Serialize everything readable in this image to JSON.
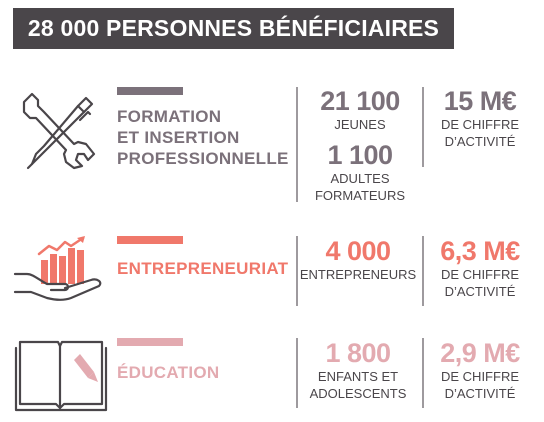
{
  "header": {
    "title": "28 000 PERSONNES BÉNÉFICIAIRES"
  },
  "colors": {
    "dark": "#4a464a",
    "gray": "#7b717a",
    "orange": "#f0786b",
    "pink": "#e3aab0",
    "line": "#9e9a9e"
  },
  "rows": [
    {
      "icon": "wrench-pen-icon",
      "title_lines": [
        "FORMATION",
        "ET INSERTION",
        "PROFESSIONNELLE"
      ],
      "stats": [
        {
          "number": "21 100",
          "label_lines": [
            "JEUNES"
          ]
        },
        {
          "number": "1 100",
          "label_lines": [
            "ADULTES",
            "FORMATEURS"
          ]
        }
      ],
      "revenue": {
        "number": "15 M€",
        "label_lines": [
          "DE CHIFFRE",
          "D’ACTIVITÉ"
        ]
      }
    },
    {
      "icon": "hand-growth-chart-icon",
      "title_lines": [
        "ENTREPRENEURIAT"
      ],
      "stats": [
        {
          "number": "4 000",
          "label_lines": [
            "ENTREPRENEURS"
          ]
        }
      ],
      "revenue": {
        "number": "6,3 M€",
        "label_lines": [
          "DE CHIFFRE",
          "D’ACTIVITÉ"
        ]
      }
    },
    {
      "icon": "open-book-pencil-icon",
      "title_lines": [
        "ÉDUCATION"
      ],
      "stats": [
        {
          "number": "1 800",
          "label_lines": [
            "ENFANTS ET",
            "ADOLESCENTS"
          ]
        }
      ],
      "revenue": {
        "number": "2,9 M€",
        "label_lines": [
          "DE CHIFFRE",
          "D’ACTIVITÉ"
        ]
      }
    }
  ]
}
